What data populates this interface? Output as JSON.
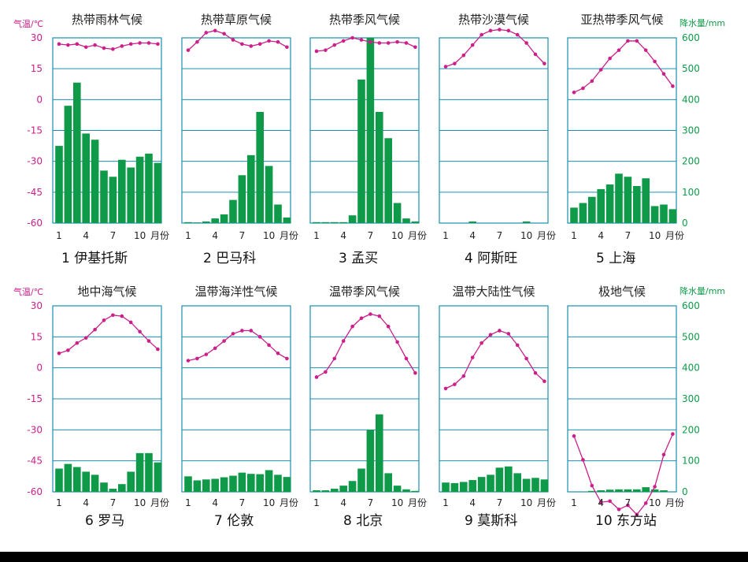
{
  "axis_labels": {
    "temp_unit": "气温/℃",
    "precip_unit": "降水量/mm",
    "month_unit": "月份"
  },
  "temp_ticks": [
    "30",
    "15",
    "0",
    "-15",
    "-30",
    "-45",
    "-60"
  ],
  "precip_ticks": [
    "600",
    "500",
    "400",
    "300",
    "200",
    "100",
    "0"
  ],
  "month_ticks": [
    "1",
    "4",
    "7",
    "10"
  ],
  "colors": {
    "temperature_line": "#cc1f8a",
    "precipitation_bar": "#0e9a48",
    "grid": "#1c8fb0",
    "temp_axis_text": "#cc1f8a",
    "precip_axis_text": "#0e9a48"
  },
  "chart_data": [
    {
      "type": "bar+line",
      "title": "热带雨林气候",
      "caption": "1  伊基托斯",
      "temperature_c": [
        27,
        26.5,
        27,
        25.5,
        26.5,
        25,
        24.5,
        26,
        27,
        27.5,
        27.5,
        27
      ],
      "precipitation_mm": [
        250,
        380,
        455,
        290,
        270,
        170,
        150,
        205,
        180,
        215,
        225,
        195
      ],
      "ylim_temp": [
        -60,
        30
      ],
      "ylim_precip": [
        0,
        600
      ]
    },
    {
      "type": "bar+line",
      "title": "热带草原气候",
      "caption": "2  巴马科",
      "temperature_c": [
        24,
        28,
        32.5,
        33.5,
        32,
        29,
        27,
        26,
        27,
        28.5,
        28,
        25.5
      ],
      "precipitation_mm": [
        3,
        2,
        5,
        15,
        28,
        75,
        155,
        220,
        360,
        185,
        60,
        18
      ],
      "ylim_temp": [
        -60,
        30
      ],
      "ylim_precip": [
        0,
        600
      ]
    },
    {
      "type": "bar+line",
      "title": "热带季风气候",
      "caption": "3  孟买",
      "temperature_c": [
        23.5,
        24,
        26.5,
        28.5,
        30,
        29,
        28,
        27.5,
        27.5,
        28,
        27.5,
        25.5
      ],
      "precipitation_mm": [
        3,
        3,
        3,
        3,
        25,
        465,
        625,
        360,
        275,
        65,
        15,
        5
      ],
      "ylim_temp": [
        -60,
        30
      ],
      "ylim_precip": [
        0,
        600
      ]
    },
    {
      "type": "bar+line",
      "title": "热带沙漠气候",
      "caption": "4  阿斯旺",
      "temperature_c": [
        16,
        17.5,
        21.5,
        26.5,
        31.5,
        33.5,
        34,
        33.5,
        31.5,
        27.5,
        22,
        17.5
      ],
      "precipitation_mm": [
        0,
        0,
        0,
        5,
        0,
        0,
        0,
        0,
        0,
        5,
        0,
        0
      ],
      "ylim_temp": [
        -60,
        30
      ],
      "ylim_precip": [
        0,
        600
      ]
    },
    {
      "type": "bar+line",
      "title": "亚热带季风气候",
      "caption": "5  上海",
      "temperature_c": [
        3.5,
        5.5,
        9,
        14.5,
        20,
        24,
        28.5,
        28.5,
        24,
        18.5,
        12.5,
        6.5
      ],
      "precipitation_mm": [
        50,
        65,
        85,
        110,
        125,
        160,
        150,
        120,
        145,
        55,
        60,
        45
      ],
      "ylim_temp": [
        -60,
        30
      ],
      "ylim_precip": [
        0,
        600
      ]
    },
    {
      "type": "bar+line",
      "title": "地中海气候",
      "caption": "6  罗马",
      "temperature_c": [
        7,
        8.5,
        12,
        14.5,
        18.5,
        23,
        25.5,
        25,
        22,
        17.5,
        13,
        9
      ],
      "precipitation_mm": [
        75,
        90,
        80,
        65,
        55,
        30,
        10,
        25,
        65,
        125,
        125,
        95
      ],
      "ylim_temp": [
        -60,
        30
      ],
      "ylim_precip": [
        0,
        600
      ]
    },
    {
      "type": "bar+line",
      "title": "温带海洋性气候",
      "caption": "7  伦敦",
      "temperature_c": [
        3.5,
        4.5,
        6.5,
        9.5,
        13,
        16.5,
        18,
        18,
        15,
        11,
        7,
        4.5
      ],
      "precipitation_mm": [
        50,
        37,
        40,
        42,
        47,
        52,
        62,
        58,
        57,
        70,
        55,
        48
      ],
      "ylim_temp": [
        -60,
        30
      ],
      "ylim_precip": [
        0,
        600
      ]
    },
    {
      "type": "bar+line",
      "title": "温带季风气候",
      "caption": "8  北京",
      "temperature_c": [
        -4.5,
        -2,
        4.5,
        13,
        20,
        24,
        26,
        25,
        20,
        12.5,
        4.5,
        -2.5
      ],
      "precipitation_mm": [
        5,
        5,
        10,
        20,
        35,
        75,
        200,
        250,
        60,
        20,
        8,
        3
      ],
      "ylim_temp": [
        -60,
        30
      ],
      "ylim_precip": [
        0,
        600
      ]
    },
    {
      "type": "bar+line",
      "title": "温带大陆性气候",
      "caption": "9  莫斯科",
      "temperature_c": [
        -10,
        -8,
        -4,
        5,
        12,
        16,
        18,
        16.5,
        11,
        4.5,
        -2.5,
        -6.5
      ],
      "precipitation_mm": [
        30,
        28,
        32,
        38,
        48,
        55,
        78,
        82,
        60,
        42,
        45,
        40
      ],
      "ylim_temp": [
        -60,
        30
      ],
      "ylim_precip": [
        0,
        600
      ]
    },
    {
      "type": "bar+line",
      "title": "极地气候",
      "caption": "10  东方站",
      "temperature_c": [
        -33,
        -44.5,
        -57,
        -65,
        -64.5,
        -68.5,
        -66.5,
        -71,
        -65.5,
        -57.5,
        -42,
        -32
      ],
      "precipitation_mm": [
        0,
        0,
        3,
        5,
        7,
        8,
        8,
        8,
        15,
        8,
        5,
        0
      ],
      "ylim_temp": [
        -60,
        30
      ],
      "ylim_precip": [
        0,
        600
      ]
    }
  ]
}
